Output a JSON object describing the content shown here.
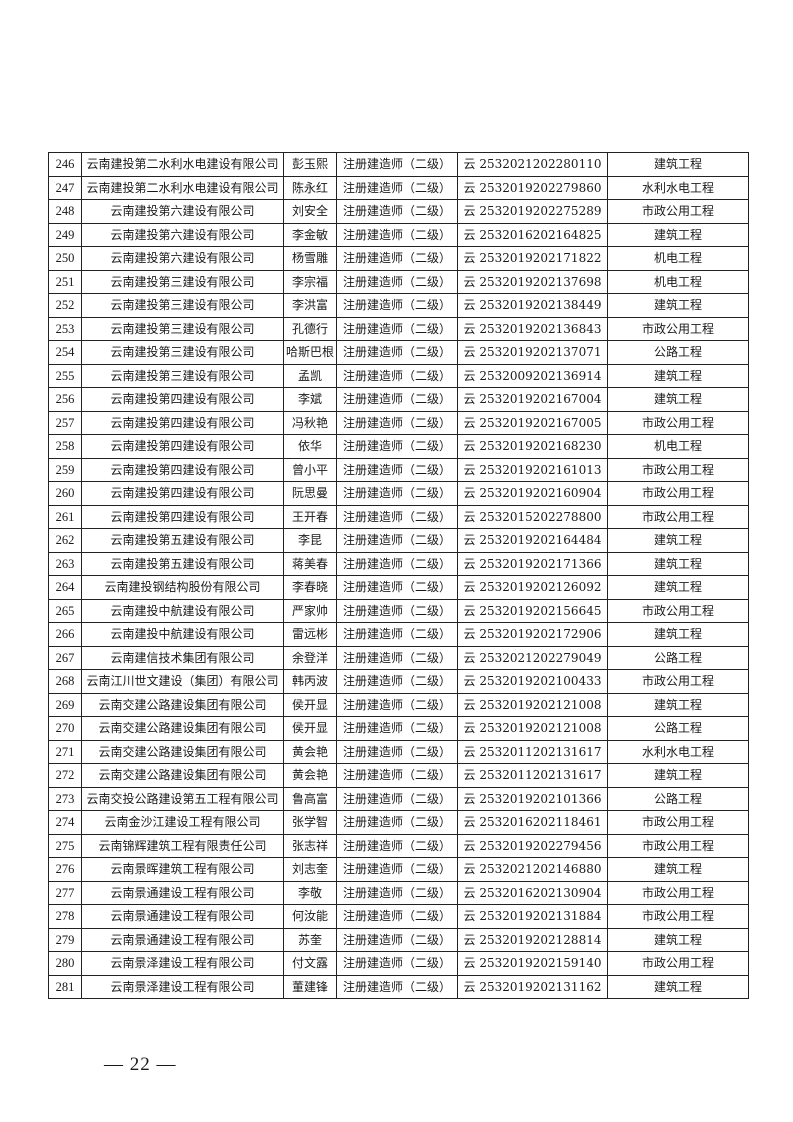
{
  "rows": [
    [
      "246",
      "云南建投第二水利水电建设有限公司",
      "彭玉熙",
      "注册建造师（二级）",
      "云 2532021202280110",
      "建筑工程"
    ],
    [
      "247",
      "云南建投第二水利水电建设有限公司",
      "陈永红",
      "注册建造师（二级）",
      "云 2532019202279860",
      "水利水电工程"
    ],
    [
      "248",
      "云南建投第六建设有限公司",
      "刘安全",
      "注册建造师（二级）",
      "云 2532019202275289",
      "市政公用工程"
    ],
    [
      "249",
      "云南建投第六建设有限公司",
      "李金敏",
      "注册建造师（二级）",
      "云 2532016202164825",
      "建筑工程"
    ],
    [
      "250",
      "云南建投第六建设有限公司",
      "杨雪雕",
      "注册建造师（二级）",
      "云 2532019202171822",
      "机电工程"
    ],
    [
      "251",
      "云南建投第三建设有限公司",
      "李宗福",
      "注册建造师（二级）",
      "云 2532019202137698",
      "机电工程"
    ],
    [
      "252",
      "云南建投第三建设有限公司",
      "李洪富",
      "注册建造师（二级）",
      "云 2532019202138449",
      "建筑工程"
    ],
    [
      "253",
      "云南建投第三建设有限公司",
      "孔德行",
      "注册建造师（二级）",
      "云 2532019202136843",
      "市政公用工程"
    ],
    [
      "254",
      "云南建投第三建设有限公司",
      "哈斯巴根",
      "注册建造师（二级）",
      "云 2532019202137071",
      "公路工程"
    ],
    [
      "255",
      "云南建投第三建设有限公司",
      "孟凯",
      "注册建造师（二级）",
      "云 2532009202136914",
      "建筑工程"
    ],
    [
      "256",
      "云南建投第四建设有限公司",
      "李斌",
      "注册建造师（二级）",
      "云 2532019202167004",
      "建筑工程"
    ],
    [
      "257",
      "云南建投第四建设有限公司",
      "冯秋艳",
      "注册建造师（二级）",
      "云 2532019202167005",
      "市政公用工程"
    ],
    [
      "258",
      "云南建投第四建设有限公司",
      "依华",
      "注册建造师（二级）",
      "云 2532019202168230",
      "机电工程"
    ],
    [
      "259",
      "云南建投第四建设有限公司",
      "曾小平",
      "注册建造师（二级）",
      "云 2532019202161013",
      "市政公用工程"
    ],
    [
      "260",
      "云南建投第四建设有限公司",
      "阮思曼",
      "注册建造师（二级）",
      "云 2532019202160904",
      "市政公用工程"
    ],
    [
      "261",
      "云南建投第四建设有限公司",
      "王开春",
      "注册建造师（二级）",
      "云 2532015202278800",
      "市政公用工程"
    ],
    [
      "262",
      "云南建投第五建设有限公司",
      "李昆",
      "注册建造师（二级）",
      "云 2532019202164484",
      "建筑工程"
    ],
    [
      "263",
      "云南建投第五建设有限公司",
      "蒋美春",
      "注册建造师（二级）",
      "云 2532019202171366",
      "建筑工程"
    ],
    [
      "264",
      "云南建投钢结构股份有限公司",
      "李春晓",
      "注册建造师（二级）",
      "云 2532019202126092",
      "建筑工程"
    ],
    [
      "265",
      "云南建投中航建设有限公司",
      "严家帅",
      "注册建造师（二级）",
      "云 2532019202156645",
      "市政公用工程"
    ],
    [
      "266",
      "云南建投中航建设有限公司",
      "雷远彬",
      "注册建造师（二级）",
      "云 2532019202172906",
      "建筑工程"
    ],
    [
      "267",
      "云南建信技术集团有限公司",
      "余登洋",
      "注册建造师（二级）",
      "云 2532021202279049",
      "公路工程"
    ],
    [
      "268",
      "云南江川世文建设（集团）有限公司",
      "韩丙波",
      "注册建造师（二级）",
      "云 2532019202100433",
      "市政公用工程"
    ],
    [
      "269",
      "云南交建公路建设集团有限公司",
      "侯开显",
      "注册建造师（二级）",
      "云 2532019202121008",
      "建筑工程"
    ],
    [
      "270",
      "云南交建公路建设集团有限公司",
      "侯开显",
      "注册建造师（二级）",
      "云 2532019202121008",
      "公路工程"
    ],
    [
      "271",
      "云南交建公路建设集团有限公司",
      "黄会艳",
      "注册建造师（二级）",
      "云 2532011202131617",
      "水利水电工程"
    ],
    [
      "272",
      "云南交建公路建设集团有限公司",
      "黄会艳",
      "注册建造师（二级）",
      "云 2532011202131617",
      "建筑工程"
    ],
    [
      "273",
      "云南交投公路建设第五工程有限公司",
      "鲁高富",
      "注册建造师（二级）",
      "云 2532019202101366",
      "公路工程"
    ],
    [
      "274",
      "云南金沙江建设工程有限公司",
      "张学智",
      "注册建造师（二级）",
      "云 2532016202118461",
      "市政公用工程"
    ],
    [
      "275",
      "云南锦辉建筑工程有限责任公司",
      "张志祥",
      "注册建造师（二级）",
      "云 2532019202279456",
      "市政公用工程"
    ],
    [
      "276",
      "云南景晖建筑工程有限公司",
      "刘志奎",
      "注册建造师（二级）",
      "云 2532021202146880",
      "建筑工程"
    ],
    [
      "277",
      "云南景通建设工程有限公司",
      "李敬",
      "注册建造师（二级）",
      "云 2532016202130904",
      "市政公用工程"
    ],
    [
      "278",
      "云南景通建设工程有限公司",
      "何汝能",
      "注册建造师（二级）",
      "云 2532019202131884",
      "市政公用工程"
    ],
    [
      "279",
      "云南景通建设工程有限公司",
      "苏奎",
      "注册建造师（二级）",
      "云 2532019202128814",
      "建筑工程"
    ],
    [
      "280",
      "云南景泽建设工程有限公司",
      "付文露",
      "注册建造师（二级）",
      "云 2532019202159140",
      "市政公用工程"
    ],
    [
      "281",
      "云南景泽建设工程有限公司",
      "董建锋",
      "注册建造师（二级）",
      "云 2532019202131162",
      "建筑工程"
    ]
  ],
  "page_number": "— 22 —"
}
